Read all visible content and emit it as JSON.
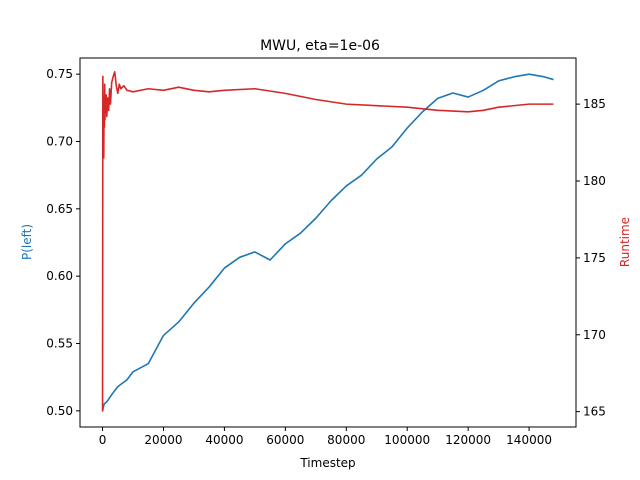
{
  "chart_data": {
    "type": "line",
    "title": "MWU, eta=1e-06",
    "xlabel": "Timestep",
    "ylabel_left": "P(left)",
    "ylabel_right": "Runtime",
    "xlim": [
      -7400,
      155400
    ],
    "ylim_left": [
      0.488,
      0.762
    ],
    "ylim_right": [
      164.0,
      188.0
    ],
    "x_ticks": [
      0,
      20000,
      40000,
      60000,
      80000,
      100000,
      120000,
      140000
    ],
    "y_left_ticks": [
      "0.50",
      "0.55",
      "0.60",
      "0.65",
      "0.70",
      "0.75"
    ],
    "y_right_ticks": [
      "165",
      "170",
      "175",
      "180",
      "185"
    ],
    "grid": false,
    "colors": {
      "left_series": "#1f77b4",
      "right_series": "#d62728"
    },
    "series": [
      {
        "name": "",
        "axis": "left",
        "x": [
          0,
          500,
          1500,
          3000,
          5000,
          8000,
          10000,
          15000,
          20000,
          25000,
          30000,
          35000,
          40000,
          45000,
          50000,
          55000,
          60000,
          65000,
          70000,
          75000,
          80000,
          85000,
          90000,
          95000,
          100000,
          105000,
          110000,
          115000,
          120000,
          125000,
          130000,
          135000,
          140000,
          145000,
          148000
        ],
        "y": [
          0.5,
          0.505,
          0.507,
          0.512,
          0.518,
          0.523,
          0.529,
          0.535,
          0.556,
          0.566,
          0.58,
          0.592,
          0.606,
          0.614,
          0.618,
          0.612,
          0.624,
          0.632,
          0.643,
          0.656,
          0.667,
          0.675,
          0.687,
          0.696,
          0.71,
          0.722,
          0.732,
          0.736,
          0.733,
          0.738,
          0.745,
          0.748,
          0.75,
          0.748,
          0.746
        ]
      },
      {
        "name": "",
        "axis": "right",
        "x": [
          0,
          100,
          200,
          300,
          400,
          500,
          600,
          700,
          800,
          900,
          1000,
          1200,
          1400,
          1700,
          2000,
          2300,
          2600,
          3000,
          3500,
          4000,
          4500,
          5000,
          5500,
          6000,
          7000,
          8000,
          10000,
          15000,
          20000,
          25000,
          30000,
          35000,
          40000,
          50000,
          60000,
          70000,
          80000,
          90000,
          100000,
          110000,
          120000,
          125000,
          130000,
          140000,
          148000
        ],
        "y": [
          165.0,
          186.8,
          182.5,
          185.5,
          181.5,
          185.2,
          183.5,
          186.3,
          184.0,
          185.5,
          184.5,
          185.6,
          184.2,
          185.4,
          184.6,
          186.0,
          185.0,
          186.4,
          186.8,
          187.1,
          186.2,
          185.7,
          186.3,
          186.0,
          186.2,
          185.9,
          185.8,
          186.0,
          185.9,
          186.1,
          185.9,
          185.8,
          185.9,
          186.0,
          185.7,
          185.3,
          185.0,
          184.9,
          184.8,
          184.6,
          184.5,
          184.6,
          184.8,
          185.0,
          185.0
        ]
      }
    ]
  }
}
